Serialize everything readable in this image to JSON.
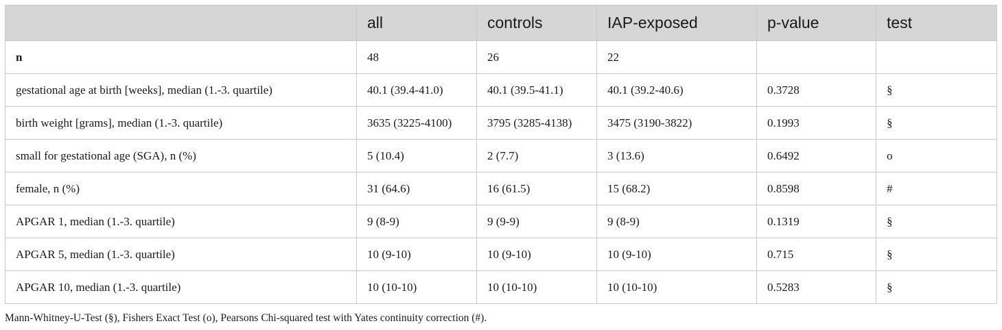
{
  "table": {
    "headers": [
      "",
      "all",
      "controls",
      "IAP-exposed",
      "p-value",
      "test"
    ],
    "rows": [
      [
        "n",
        "48",
        "26",
        "22",
        "",
        ""
      ],
      [
        "gestational age at birth [weeks], median (1.-3. quartile)",
        "40.1 (39.4-41.0)",
        "40.1 (39.5-41.1)",
        "40.1 (39.2-40.6)",
        "0.3728",
        "§"
      ],
      [
        "birth weight [grams], median (1.-3. quartile)",
        "3635 (3225-4100)",
        "3795 (3285-4138)",
        "3475 (3190-3822)",
        "0.1993",
        "§"
      ],
      [
        "small for gestational age (SGA), n (%)",
        "5 (10.4)",
        "2 (7.7)",
        "3 (13.6)",
        "0.6492",
        "o"
      ],
      [
        "female, n (%)",
        "31 (64.6)",
        "16 (61.5)",
        "15 (68.2)",
        "0.8598",
        "#"
      ],
      [
        "APGAR 1, median (1.-3. quartile)",
        "9 (8-9)",
        "9 (9-9)",
        "9 (8-9)",
        "0.1319",
        "§"
      ],
      [
        "APGAR 5, median (1.-3. quartile)",
        "10 (9-10)",
        "10 (9-10)",
        "10 (9-10)",
        "0.715",
        "§"
      ],
      [
        "APGAR 10, median (1.-3. quartile)",
        "10 (10-10)",
        "10 (10-10)",
        "10 (10-10)",
        "0.5283",
        "§"
      ]
    ]
  },
  "footnote": "Mann-Whitney-U-Test (§), Fishers Exact Test (o), Pearsons Chi-squared test with Yates continuity correction (#)."
}
